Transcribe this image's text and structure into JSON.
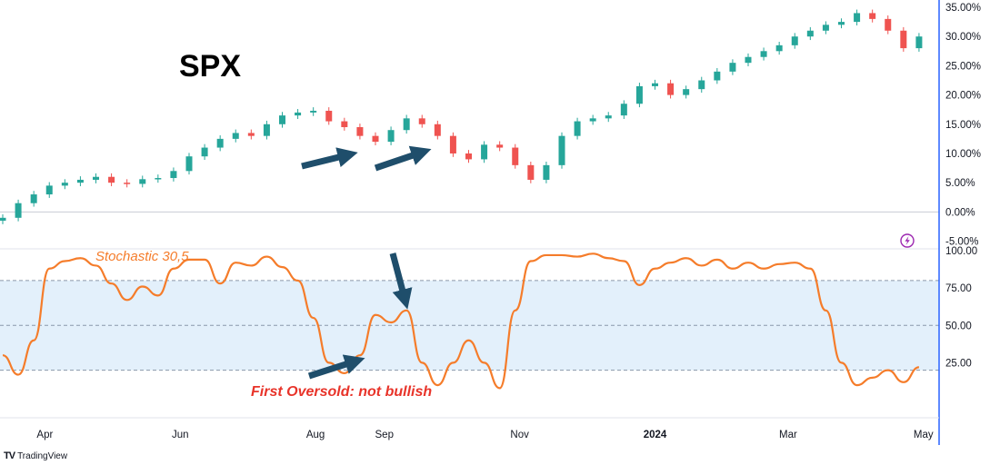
{
  "title": "SPX",
  "indicator_label": "Stochastic 30,5",
  "annotation": "First Oversold: not bullish",
  "brand": {
    "logo": "TV",
    "name": "TradingView"
  },
  "colors": {
    "up": "#26a69a",
    "down": "#ef5350",
    "stoch_line": "#f57c2a",
    "band_fill": "#e3f0fb",
    "arrow": "#1f4e6b",
    "annotation": "#e8342a"
  },
  "icons": [
    "lightning-icon",
    "arrow-icon"
  ],
  "chart_data": [
    {
      "type": "candlestick",
      "title": "SPX",
      "ylabel_format": "percent",
      "ylim": [
        -6,
        35
      ],
      "y_ticks": [
        "35.00%",
        "30.00%",
        "25.00%",
        "20.00%",
        "15.00%",
        "10.00%",
        "5.00%",
        "0.00%",
        "-5.00%"
      ],
      "baseline": 0,
      "x_ticks": [
        "Apr",
        "Jun",
        "Aug",
        "Sep",
        "Nov",
        "2024",
        "Mar",
        "May"
      ],
      "x_range": [
        "2023-03-13",
        "2024-05-06"
      ],
      "series": [
        {
          "values": [
            [
              "2023-03-13",
              -1.0
            ],
            [
              "2023-03-20",
              1.5
            ],
            [
              "2023-03-27",
              3.0
            ],
            [
              "2023-04-03",
              4.5
            ],
            [
              "2023-04-10",
              5.0
            ],
            [
              "2023-04-17",
              5.5
            ],
            [
              "2023-04-24",
              6.0
            ],
            [
              "2023-05-01",
              5.0
            ],
            [
              "2023-05-08",
              4.8
            ],
            [
              "2023-05-15",
              5.6
            ],
            [
              "2023-05-22",
              5.8
            ],
            [
              "2023-05-29",
              7.0
            ],
            [
              "2023-06-05",
              9.5
            ],
            [
              "2023-06-12",
              11.0
            ],
            [
              "2023-06-19",
              12.5
            ],
            [
              "2023-06-26",
              13.5
            ],
            [
              "2023-07-03",
              13.0
            ],
            [
              "2023-07-10",
              15.0
            ],
            [
              "2023-07-17",
              16.5
            ],
            [
              "2023-07-24",
              17.0
            ],
            [
              "2023-07-31",
              17.3
            ],
            [
              "2023-08-07",
              15.5
            ],
            [
              "2023-08-14",
              14.5
            ],
            [
              "2023-08-21",
              13.0
            ],
            [
              "2023-08-28",
              12.0
            ],
            [
              "2023-09-04",
              14.0
            ],
            [
              "2023-09-11",
              16.0
            ],
            [
              "2023-09-18",
              15.0
            ],
            [
              "2023-09-25",
              13.0
            ],
            [
              "2023-10-02",
              10.0
            ],
            [
              "2023-10-09",
              9.0
            ],
            [
              "2023-10-16",
              11.5
            ],
            [
              "2023-10-23",
              11.0
            ],
            [
              "2023-10-30",
              8.0
            ],
            [
              "2023-11-06",
              5.5
            ],
            [
              "2023-11-13",
              8.0
            ],
            [
              "2023-11-20",
              13.0
            ],
            [
              "2023-11-27",
              15.5
            ],
            [
              "2023-12-04",
              16.0
            ],
            [
              "2023-12-11",
              16.5
            ],
            [
              "2023-12-18",
              18.5
            ],
            [
              "2023-12-25",
              21.5
            ],
            [
              "2024-01-01",
              22.0
            ],
            [
              "2024-01-08",
              20.0
            ],
            [
              "2024-01-15",
              21.0
            ],
            [
              "2024-01-22",
              22.5
            ],
            [
              "2024-01-29",
              24.0
            ],
            [
              "2024-02-05",
              25.5
            ],
            [
              "2024-02-12",
              26.5
            ],
            [
              "2024-02-19",
              27.5
            ],
            [
              "2024-02-26",
              28.5
            ],
            [
              "2024-03-04",
              30.0
            ],
            [
              "2024-03-11",
              31.0
            ],
            [
              "2024-03-18",
              32.0
            ],
            [
              "2024-03-25",
              32.5
            ],
            [
              "2024-04-01",
              34.0
            ],
            [
              "2024-04-08",
              33.0
            ],
            [
              "2024-04-15",
              31.0
            ],
            [
              "2024-04-22",
              28.0
            ],
            [
              "2024-04-29",
              30.0
            ]
          ]
        }
      ]
    },
    {
      "type": "line",
      "title": "Stochastic 30,5",
      "ylim": [
        -10,
        100
      ],
      "y_ticks": [
        "100.00",
        "75.00",
        "50.00",
        "25.00"
      ],
      "band": [
        20,
        80
      ],
      "midline": 50,
      "x_range": [
        "2023-03-13",
        "2024-05-06"
      ],
      "series": [
        {
          "values": [
            [
              "2023-03-13",
              30
            ],
            [
              "2023-03-20",
              17
            ],
            [
              "2023-03-27",
              40
            ],
            [
              "2023-04-03",
              88
            ],
            [
              "2023-04-10",
              93
            ],
            [
              "2023-04-17",
              95
            ],
            [
              "2023-04-24",
              90
            ],
            [
              "2023-05-01",
              78
            ],
            [
              "2023-05-08",
              67
            ],
            [
              "2023-05-15",
              76
            ],
            [
              "2023-05-22",
              70
            ],
            [
              "2023-05-29",
              88
            ],
            [
              "2023-06-05",
              94
            ],
            [
              "2023-06-12",
              94
            ],
            [
              "2023-06-19",
              78
            ],
            [
              "2023-06-26",
              92
            ],
            [
              "2023-07-03",
              90
            ],
            [
              "2023-07-10",
              96
            ],
            [
              "2023-07-17",
              89
            ],
            [
              "2023-07-24",
              80
            ],
            [
              "2023-07-31",
              55
            ],
            [
              "2023-08-07",
              25
            ],
            [
              "2023-08-14",
              18
            ],
            [
              "2023-08-21",
              30
            ],
            [
              "2023-08-28",
              57
            ],
            [
              "2023-09-04",
              52
            ],
            [
              "2023-09-11",
              60
            ],
            [
              "2023-09-18",
              25
            ],
            [
              "2023-09-25",
              10
            ],
            [
              "2023-10-02",
              25
            ],
            [
              "2023-10-09",
              40
            ],
            [
              "2023-10-16",
              25
            ],
            [
              "2023-10-23",
              8
            ],
            [
              "2023-10-30",
              60
            ],
            [
              "2023-11-06",
              93
            ],
            [
              "2023-11-13",
              97
            ],
            [
              "2023-11-20",
              97
            ],
            [
              "2023-11-27",
              96
            ],
            [
              "2023-12-04",
              98
            ],
            [
              "2023-12-11",
              95
            ],
            [
              "2023-12-18",
              93
            ],
            [
              "2023-12-25",
              77
            ],
            [
              "2024-01-01",
              88
            ],
            [
              "2024-01-08",
              92
            ],
            [
              "2024-01-15",
              95
            ],
            [
              "2024-01-22",
              90
            ],
            [
              "2024-01-29",
              94
            ],
            [
              "2024-02-05",
              88
            ],
            [
              "2024-02-12",
              92
            ],
            [
              "2024-02-19",
              88
            ],
            [
              "2024-02-26",
              91
            ],
            [
              "2024-03-04",
              92
            ],
            [
              "2024-03-11",
              88
            ],
            [
              "2024-03-18",
              60
            ],
            [
              "2024-03-25",
              25
            ],
            [
              "2024-04-01",
              10
            ],
            [
              "2024-04-08",
              15
            ],
            [
              "2024-04-15",
              20
            ],
            [
              "2024-04-22",
              12
            ],
            [
              "2024-04-29",
              22
            ]
          ]
        }
      ]
    }
  ]
}
